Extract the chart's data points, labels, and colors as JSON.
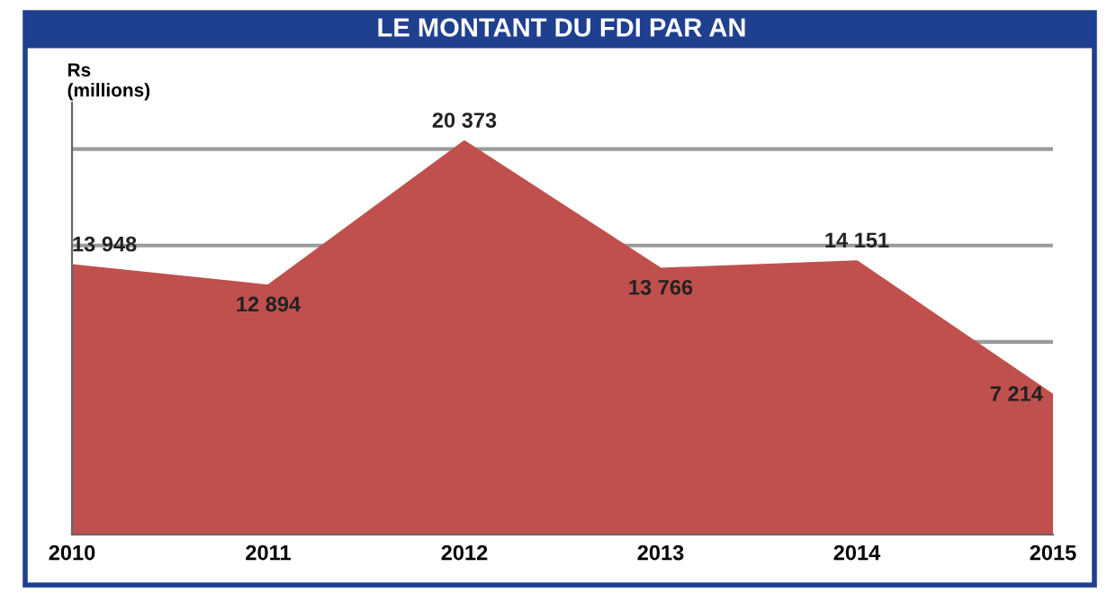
{
  "chart_data": {
    "type": "area",
    "title": "LE MONTANT DU FDI PAR AN",
    "ylabel": "Rs\n(millions)",
    "categories": [
      "2010",
      "2011",
      "2012",
      "2013",
      "2014",
      "2015"
    ],
    "series": [
      {
        "color": "#c0504d",
        "values": [
          13948,
          12894,
          20373,
          13766,
          14151,
          7214
        ]
      }
    ],
    "data_labels": true,
    "grid": "y"
  }
}
